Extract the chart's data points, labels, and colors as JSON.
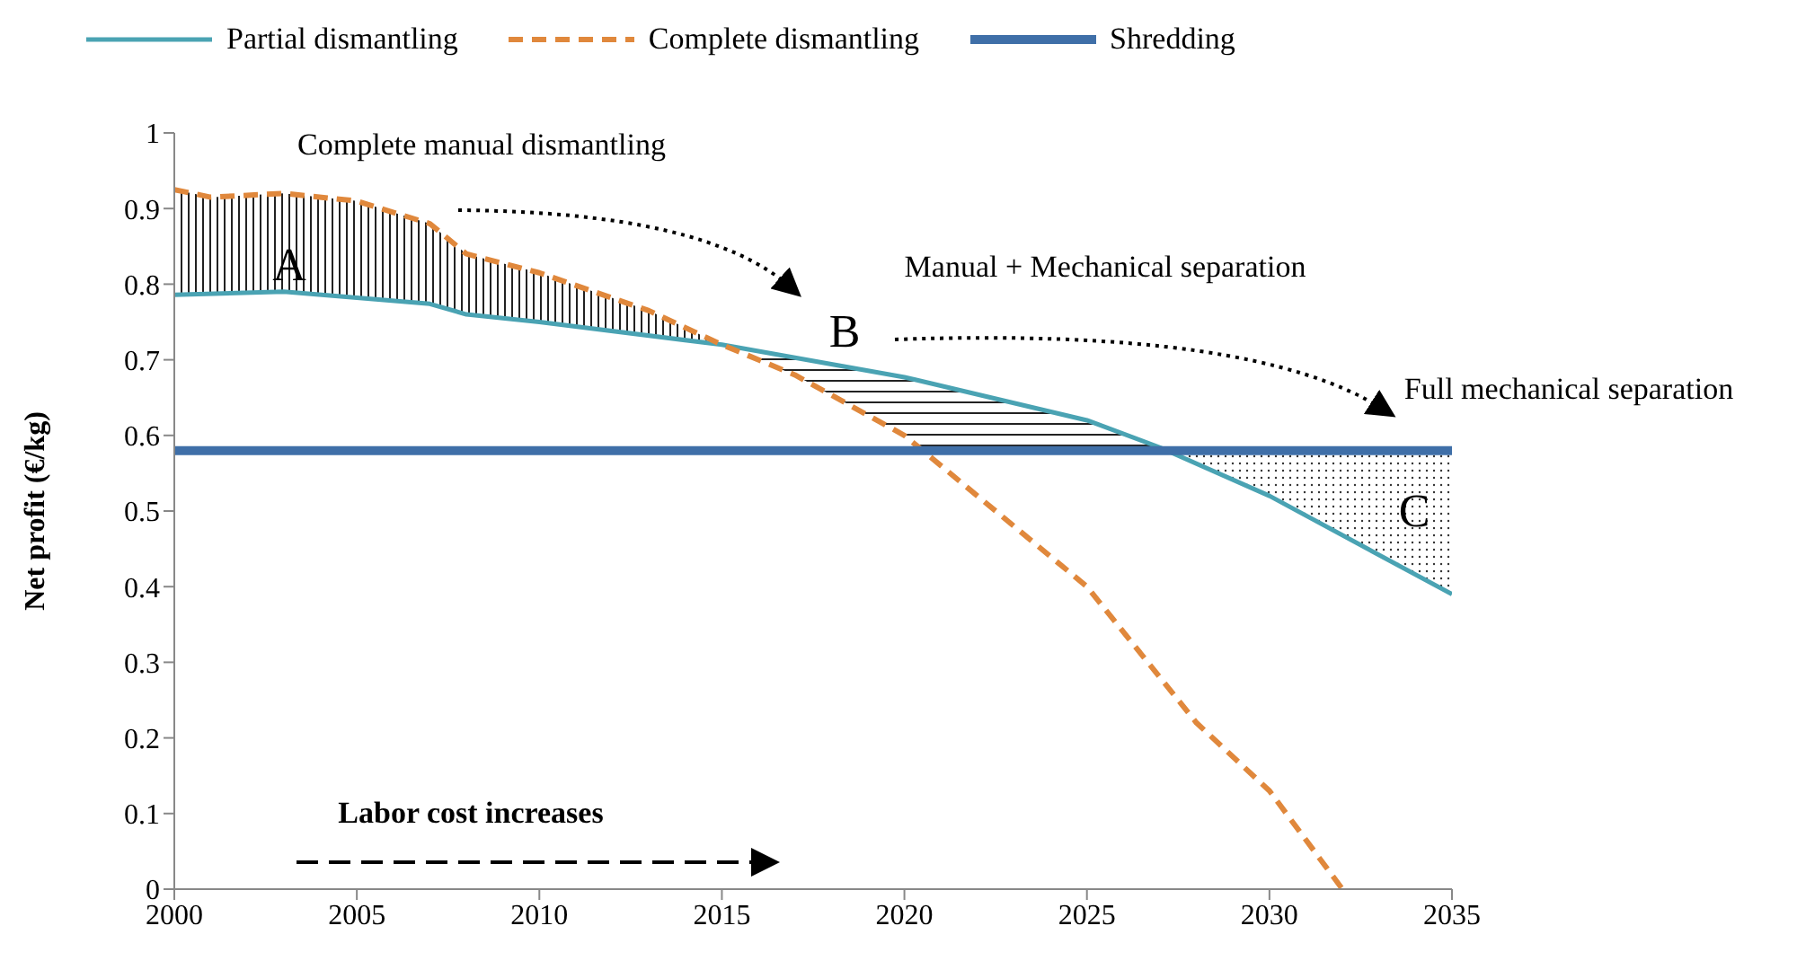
{
  "chart_data": {
    "type": "line",
    "ylabel": "Net profit (€/kg)",
    "xlim": [
      2000,
      2035
    ],
    "xticks": [
      2000,
      2005,
      2010,
      2015,
      2020,
      2025,
      2030,
      2035
    ],
    "ylim": [
      0,
      1
    ],
    "yticks": [
      0,
      0.1,
      0.2,
      0.3,
      0.4,
      0.5,
      0.6,
      0.7,
      0.8,
      0.9,
      1
    ],
    "grid": false,
    "legend": "top",
    "marker": "none",
    "series": [
      {
        "name": "Partial dismantling",
        "color": "#4aa3b3",
        "line_style": "solid",
        "x": [
          2000,
          2003,
          2007,
          2008,
          2010,
          2015,
          2020,
          2025,
          2027,
          2030,
          2035
        ],
        "values": [
          0.786,
          0.79,
          0.774,
          0.76,
          0.75,
          0.72,
          0.677,
          0.62,
          0.584,
          0.52,
          0.39
        ]
      },
      {
        "name": "Complete dismantling",
        "color": "#e0883c",
        "line_style": "dashed",
        "x": [
          2000,
          2001,
          2003,
          2005,
          2007,
          2008,
          2010,
          2013,
          2015,
          2017,
          2020,
          2023,
          2025,
          2028,
          2030,
          2032
        ],
        "values": [
          0.925,
          0.915,
          0.92,
          0.91,
          0.88,
          0.84,
          0.815,
          0.765,
          0.72,
          0.68,
          0.6,
          0.48,
          0.4,
          0.22,
          0.13,
          0
        ]
      },
      {
        "name": "Shredding",
        "color": "#3f6fa8",
        "line_style": "solid",
        "x": [
          2000,
          2035
        ],
        "values": [
          0.58,
          0.58
        ]
      }
    ],
    "annotations": [
      "Complete manual dismantling",
      "Manual + Mechanical separation",
      "Full mechanical separation",
      "Labor cost increases",
      "A",
      "B",
      "C"
    ]
  }
}
